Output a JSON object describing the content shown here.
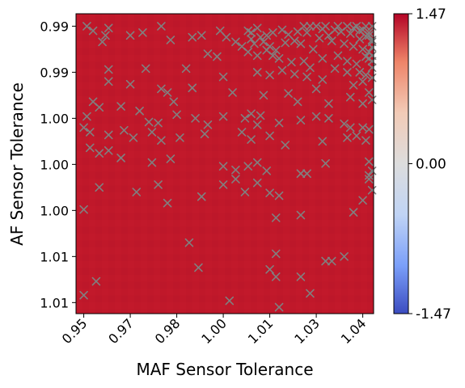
{
  "chart_data": {
    "type": "heatmap",
    "xlabel": "MAF Sensor Tolerance",
    "ylabel": "AF Sensor Tolerance",
    "x_tick_labels": [
      "0.95",
      "0.97",
      "0.98",
      "1.00",
      "1.01",
      "1.03",
      "1.04"
    ],
    "x_ticks": [
      0.95,
      0.965,
      0.98,
      0.995,
      1.01,
      1.025,
      1.04
    ],
    "xlim": [
      0.9475,
      1.0435
    ],
    "y_tick_labels": [
      "0.99",
      "0.99",
      "1.00",
      "1.00",
      "1.00",
      "1.01",
      "1.01"
    ],
    "y_ticks": [
      0.988,
      0.993,
      0.998,
      1.003,
      1.008,
      1.013,
      1.018
    ],
    "ylim": [
      0.98665,
      1.0192
    ],
    "colorbar": {
      "ticks": [
        1.47,
        0.0,
        -1.47
      ],
      "tick_labels": [
        "1.47",
        "0.00",
        "-1.47"
      ],
      "range": [
        -1.47,
        1.47
      ],
      "colormap": "coolwarm",
      "colors": [
        "#3b4cc0",
        "#7b9ff9",
        "#c0d4f5",
        "#dddddd",
        "#f2cbb7",
        "#ee8468",
        "#b40426"
      ]
    },
    "heatmap": {
      "value": 1.47,
      "color": "#c0182a"
    },
    "marker_color": "#808080",
    "markers": [
      [
        0.951,
        0.988
      ],
      [
        0.953,
        0.9885
      ],
      [
        0.957,
        0.989
      ],
      [
        0.958,
        0.9882
      ],
      [
        0.965,
        0.989
      ],
      [
        0.969,
        0.9887
      ],
      [
        0.975,
        0.988
      ],
      [
        0.978,
        0.9895
      ],
      [
        0.985,
        0.9892
      ],
      [
        0.988,
        0.989
      ],
      [
        0.994,
        0.9885
      ],
      [
        0.996,
        0.9892
      ],
      [
        0.999,
        0.9897
      ],
      [
        1.003,
        0.9885
      ],
      [
        1.004,
        0.9887
      ],
      [
        1.006,
        0.9882
      ],
      [
        1.007,
        0.9892
      ],
      [
        1.009,
        0.989
      ],
      [
        1.011,
        0.9887
      ],
      [
        1.014,
        0.9884
      ],
      [
        1.016,
        0.9889
      ],
      [
        1.019,
        0.9886
      ],
      [
        1.021,
        0.988
      ],
      [
        1.022,
        0.9887
      ],
      [
        1.023,
        0.988
      ],
      [
        1.025,
        0.988
      ],
      [
        1.027,
        0.9883
      ],
      [
        1.028,
        0.988
      ],
      [
        1.029,
        0.989
      ],
      [
        1.031,
        0.9884
      ],
      [
        1.032,
        0.988
      ],
      [
        1.033,
        0.9886
      ],
      [
        1.035,
        0.988
      ],
      [
        1.036,
        0.9888
      ],
      [
        1.037,
        0.9882
      ],
      [
        1.038,
        0.988
      ],
      [
        1.039,
        0.9885
      ],
      [
        1.04,
        0.9884
      ],
      [
        1.041,
        0.988
      ],
      [
        1.042,
        0.9887
      ],
      [
        1.043,
        0.988
      ],
      [
        1.042,
        0.989
      ],
      [
        1.043,
        0.9895
      ],
      [
        1.041,
        0.9891
      ],
      [
        1.039,
        0.9894
      ],
      [
        1.043,
        0.9897
      ],
      [
        1.004,
        0.9894
      ],
      [
        1.005,
        0.9899
      ],
      [
        1.008,
        0.9897
      ],
      [
        1.01,
        0.9902
      ],
      [
        1.012,
        0.9906
      ],
      [
        1.015,
        0.9898
      ],
      [
        1.018,
        0.9896
      ],
      [
        1.02,
        0.9899
      ],
      [
        1.024,
        0.9905
      ],
      [
        1.026,
        0.9893
      ],
      [
        1.03,
        0.9896
      ],
      [
        1.034,
        0.9899
      ],
      [
        1.037,
        0.9902
      ],
      [
        1.04,
        0.9905
      ],
      [
        1.043,
        0.9903
      ],
      [
        1.042,
        0.9908
      ],
      [
        1.041,
        0.9913
      ],
      [
        1.043,
        0.9912
      ],
      [
        1.042,
        0.9915
      ],
      [
        0.956,
        0.9897
      ],
      [
        0.99,
        0.991
      ],
      [
        0.993,
        0.9913
      ],
      [
        1.001,
        0.9902
      ],
      [
        1.003,
        0.9908
      ],
      [
        1.006,
        0.9912
      ],
      [
        1.009,
        0.9906
      ],
      [
        1.011,
        0.9912
      ],
      [
        1.013,
        0.9915
      ],
      [
        1.017,
        0.9919
      ],
      [
        1.021,
        0.9918
      ],
      [
        1.023,
        0.9925
      ],
      [
        1.027,
        0.9915
      ],
      [
        1.032,
        0.9912
      ],
      [
        1.035,
        0.9918
      ],
      [
        1.038,
        0.9921
      ],
      [
        1.043,
        0.9918
      ],
      [
        1.043,
        0.9925
      ],
      [
        0.958,
        0.9927
      ],
      [
        0.97,
        0.9926
      ],
      [
        0.983,
        0.9926
      ],
      [
        0.995,
        0.9935
      ],
      [
        1.006,
        0.993
      ],
      [
        1.01,
        0.9933
      ],
      [
        1.014,
        0.9928
      ],
      [
        1.018,
        0.9932
      ],
      [
        1.022,
        0.9935
      ],
      [
        1.027,
        0.9938
      ],
      [
        1.031,
        0.9926
      ],
      [
        1.035,
        0.993
      ],
      [
        1.039,
        0.993
      ],
      [
        1.041,
        0.9933
      ],
      [
        1.043,
        0.9936
      ],
      [
        1.04,
        0.994
      ],
      [
        1.037,
        0.9944
      ],
      [
        0.958,
        0.994
      ],
      [
        0.965,
        0.9943
      ],
      [
        0.975,
        0.9948
      ],
      [
        0.977,
        0.9952
      ],
      [
        0.979,
        0.9962
      ],
      [
        0.985,
        0.9947
      ],
      [
        0.998,
        0.9952
      ],
      [
        1.008,
        0.9955
      ],
      [
        1.016,
        0.9953
      ],
      [
        1.019,
        0.9962
      ],
      [
        1.025,
        0.9948
      ],
      [
        1.029,
        0.9964
      ],
      [
        1.036,
        0.9957
      ],
      [
        1.042,
        0.9952
      ],
      [
        1.04,
        0.9964
      ],
      [
        1.043,
        0.996
      ],
      [
        0.953,
        0.9962
      ],
      [
        0.955,
        0.9968
      ],
      [
        0.951,
        0.9978
      ],
      [
        0.962,
        0.9967
      ],
      [
        0.968,
        0.9972
      ],
      [
        0.971,
        0.9984
      ],
      [
        0.974,
        0.9985
      ],
      [
        0.98,
        0.9976
      ],
      [
        0.986,
        0.998
      ],
      [
        0.99,
        0.9987
      ],
      [
        0.995,
        0.9978
      ],
      [
        1.002,
        0.998
      ],
      [
        1.004,
        0.9975
      ],
      [
        1.006,
        0.9987
      ],
      [
        1.007,
        0.9977
      ],
      [
        1.013,
        0.9985
      ],
      [
        1.02,
        0.9982
      ],
      [
        1.025,
        0.9978
      ],
      [
        1.029,
        0.998
      ],
      [
        1.034,
        0.9986
      ],
      [
        1.036,
        0.999
      ],
      [
        1.04,
        0.999
      ],
      [
        1.042,
        0.9992
      ],
      [
        0.95,
        0.999
      ],
      [
        0.952,
        0.9995
      ],
      [
        0.958,
        0.9998
      ],
      [
        0.963,
        0.9993
      ],
      [
        0.966,
        1.0001
      ],
      [
        0.972,
        0.9995
      ],
      [
        0.975,
        1.0004
      ],
      [
        0.981,
        1.0001
      ],
      [
        0.989,
        0.9997
      ],
      [
        1.001,
        0.9995
      ],
      [
        1.004,
        1.0003
      ],
      [
        1.01,
        0.9999
      ],
      [
        1.015,
        1.0009
      ],
      [
        1.027,
        1.0005
      ],
      [
        1.035,
        1.0001
      ],
      [
        1.038,
        0.9999
      ],
      [
        1.041,
        1.0004
      ],
      [
        0.952,
        1.0012
      ],
      [
        0.955,
        1.0018
      ],
      [
        0.958,
        1.0015
      ],
      [
        0.962,
        1.0023
      ],
      [
        0.972,
        1.0028
      ],
      [
        0.978,
        1.0024
      ],
      [
        0.995,
        1.0032
      ],
      [
        0.999,
        1.0036
      ],
      [
        1.003,
        1.0032
      ],
      [
        1.006,
        1.0028
      ],
      [
        1.009,
        1.0037
      ],
      [
        1.02,
        1.004
      ],
      [
        1.022,
        1.004
      ],
      [
        1.028,
        1.0029
      ],
      [
        1.042,
        1.0027
      ],
      [
        1.043,
        1.0037
      ],
      [
        1.042,
        1.0046
      ],
      [
        0.955,
        1.0055
      ],
      [
        0.967,
        1.006
      ],
      [
        0.974,
        1.0052
      ],
      [
        0.977,
        1.0072
      ],
      [
        0.988,
        1.0065
      ],
      [
        0.995,
        1.0052
      ],
      [
        0.999,
        1.0046
      ],
      [
        1.002,
        1.006
      ],
      [
        1.006,
        1.005
      ],
      [
        1.01,
        1.0061
      ],
      [
        1.013,
        1.0064
      ],
      [
        1.04,
        1.0069
      ],
      [
        1.043,
        1.0058
      ],
      [
        1.042,
        1.0042
      ],
      [
        0.95,
        1.0079
      ],
      [
        0.984,
        1.0115
      ],
      [
        1.012,
        1.0088
      ],
      [
        1.02,
        1.0085
      ],
      [
        1.037,
        1.0082
      ],
      [
        1.012,
        1.0127
      ],
      [
        1.028,
        1.0135
      ],
      [
        1.03,
        1.0135
      ],
      [
        1.034,
        1.013
      ],
      [
        0.987,
        1.0142
      ],
      [
        1.01,
        1.0144
      ],
      [
        1.02,
        1.0152
      ],
      [
        1.012,
        1.0152
      ],
      [
        0.954,
        1.0157
      ],
      [
        0.95,
        1.0172
      ],
      [
        0.997,
        1.0178
      ],
      [
        1.023,
        1.017
      ],
      [
        1.013,
        1.0185
      ]
    ]
  }
}
